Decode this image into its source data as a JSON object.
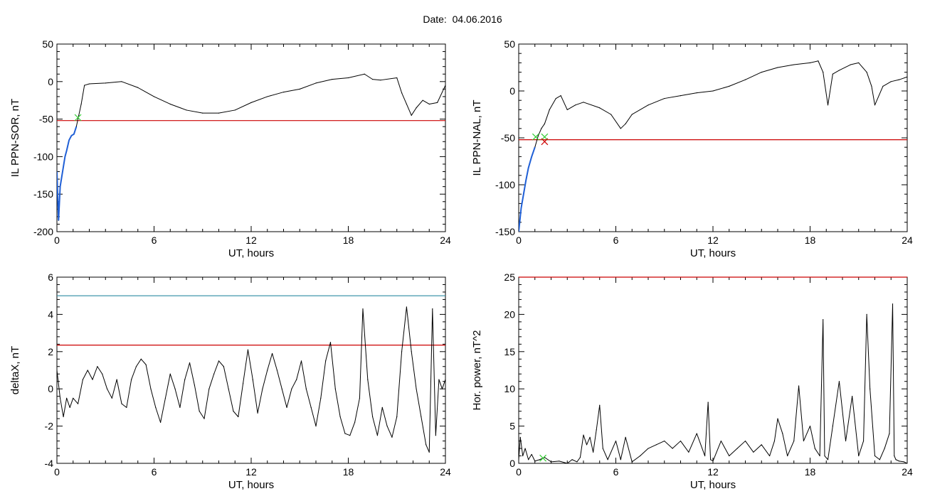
{
  "title": "Date:  04.06.2016",
  "colors": {
    "axis": "#000000",
    "data": "#000000",
    "threshold_red": "#cc0000",
    "threshold_blue": "#2b8ca3",
    "segment_blue": "#1f5fd6",
    "marker_green": "#33cc33",
    "marker_red": "#cc0000"
  },
  "chart_data": [
    {
      "type": "line",
      "title": "",
      "xlabel": "UT, hours",
      "ylabel": "IL PPN-SOR, nT",
      "xlim": [
        0,
        24
      ],
      "ylim": [
        -200,
        50
      ],
      "xticks": [
        0,
        6,
        12,
        18,
        24
      ],
      "yticks": [
        -200,
        -150,
        -100,
        -50,
        0,
        50
      ],
      "hlines": [
        {
          "y": -52,
          "color": "#cc0000"
        }
      ],
      "highlight_segment": {
        "x_range": [
          0,
          1.3
        ],
        "color": "#1f5fd6"
      },
      "markers": [
        {
          "x": 1.3,
          "y": -48,
          "symbol": "x",
          "color": "#33cc33"
        }
      ],
      "series": [
        {
          "x": [
            0,
            0.1,
            0.2,
            0.35,
            0.5,
            0.6,
            0.75,
            0.9,
            1.05,
            1.2,
            1.35,
            1.5,
            1.7,
            2,
            3,
            4,
            5,
            6,
            7,
            8,
            9,
            10,
            11,
            12,
            13,
            14,
            15,
            16,
            17,
            18,
            19,
            19.5,
            20,
            21,
            21.3,
            21.6,
            21.9,
            22.2,
            22.6,
            23,
            23.5,
            24
          ],
          "y": [
            -120,
            -185,
            -140,
            -120,
            -100,
            -92,
            -78,
            -72,
            -70,
            -60,
            -45,
            -30,
            -5,
            -3,
            -2,
            0,
            -8,
            -20,
            -30,
            -38,
            -42,
            -42,
            -38,
            -28,
            -20,
            -14,
            -10,
            -2,
            3,
            5,
            10,
            3,
            2,
            5,
            -15,
            -30,
            -45,
            -35,
            -25,
            -30,
            -28,
            -5
          ]
        }
      ]
    },
    {
      "type": "line",
      "title": "",
      "xlabel": "UT, hours",
      "ylabel": "IL PPN-NAL, nT",
      "xlim": [
        0,
        24
      ],
      "ylim": [
        -150,
        50
      ],
      "xticks": [
        0,
        6,
        12,
        18,
        24
      ],
      "yticks": [
        -150,
        -100,
        -50,
        0,
        50
      ],
      "hlines": [
        {
          "y": -52,
          "color": "#cc0000"
        }
      ],
      "highlight_segment": {
        "x_range": [
          0,
          1.1
        ],
        "color": "#1f5fd6"
      },
      "markers": [
        {
          "x": 1.05,
          "y": -49,
          "symbol": "x",
          "color": "#33cc33"
        },
        {
          "x": 1.6,
          "y": -49,
          "symbol": "x",
          "color": "#33cc33"
        },
        {
          "x": 1.6,
          "y": -54,
          "symbol": "x",
          "color": "#cc0000"
        }
      ],
      "series": [
        {
          "x": [
            0,
            0.15,
            0.3,
            0.45,
            0.6,
            0.8,
            1.0,
            1.2,
            1.4,
            1.6,
            1.9,
            2.3,
            2.6,
            3,
            3.5,
            4,
            5,
            5.7,
            6.3,
            6.6,
            7,
            8,
            9,
            10,
            11,
            12,
            13,
            14,
            15,
            16,
            17,
            18,
            18.5,
            18.8,
            19.1,
            19.4,
            19.8,
            20.5,
            21,
            21.5,
            21.8,
            22,
            22.5,
            23,
            23.5,
            24
          ],
          "y": [
            -150,
            -125,
            -110,
            -95,
            -82,
            -70,
            -60,
            -48,
            -40,
            -35,
            -20,
            -8,
            -5,
            -20,
            -15,
            -12,
            -18,
            -25,
            -40,
            -35,
            -25,
            -15,
            -8,
            -5,
            -2,
            0,
            5,
            12,
            20,
            25,
            28,
            30,
            32,
            20,
            -15,
            18,
            22,
            28,
            30,
            20,
            5,
            -15,
            5,
            10,
            12,
            15
          ]
        }
      ]
    },
    {
      "type": "line",
      "title": "",
      "xlabel": "UT, hours",
      "ylabel": "deltaX, nT",
      "xlim": [
        0,
        24
      ],
      "ylim": [
        -4,
        6
      ],
      "xticks": [
        0,
        6,
        12,
        18,
        24
      ],
      "yticks": [
        -4,
        -2,
        0,
        2,
        4,
        6
      ],
      "hlines": [
        {
          "y": 5,
          "color": "#2b8ca3"
        },
        {
          "y": 2.35,
          "color": "#cc0000"
        }
      ],
      "series": [
        {
          "x": [
            0,
            0.2,
            0.4,
            0.6,
            0.8,
            1,
            1.3,
            1.6,
            1.9,
            2.2,
            2.5,
            2.8,
            3.1,
            3.4,
            3.7,
            4,
            4.3,
            4.6,
            4.9,
            5.2,
            5.5,
            5.8,
            6.1,
            6.4,
            6.7,
            7,
            7.3,
            7.6,
            7.9,
            8.2,
            8.5,
            8.8,
            9.1,
            9.4,
            9.7,
            10,
            10.3,
            10.6,
            10.9,
            11.2,
            11.5,
            11.8,
            12.1,
            12.4,
            12.7,
            13,
            13.3,
            13.6,
            13.9,
            14.2,
            14.5,
            14.8,
            15.1,
            15.4,
            15.7,
            16,
            16.3,
            16.6,
            16.9,
            17.2,
            17.5,
            17.8,
            18.1,
            18.4,
            18.7,
            18.9,
            19.2,
            19.5,
            19.8,
            20.1,
            20.4,
            20.7,
            21,
            21.3,
            21.6,
            21.9,
            22.2,
            22.5,
            22.8,
            23,
            23.2,
            23.4,
            23.6,
            23.8,
            24
          ],
          "y": [
            1,
            -0.5,
            -1.5,
            -0.5,
            -1,
            -0.5,
            -0.8,
            0.5,
            1,
            0.5,
            1.2,
            0.8,
            0,
            -0.5,
            0.5,
            -0.8,
            -1,
            0.5,
            1.2,
            1.6,
            1.3,
            0,
            -1,
            -1.8,
            -0.5,
            0.8,
            0,
            -1,
            0.5,
            1.4,
            0.2,
            -1.2,
            -1.6,
            0,
            0.8,
            1.5,
            1.2,
            0,
            -1.2,
            -1.5,
            0.3,
            2.1,
            0.5,
            -1.3,
            0,
            1,
            1.9,
            1,
            0,
            -1,
            0,
            0.5,
            1.5,
            0,
            -1,
            -2,
            -0.5,
            1.5,
            2.5,
            0,
            -1.5,
            -2.4,
            -2.5,
            -1.8,
            -0.5,
            4.3,
            0.5,
            -1.5,
            -2.5,
            -1,
            -2,
            -2.6,
            -1.5,
            2,
            4.4,
            2,
            0,
            -1.5,
            -3,
            -3.4,
            4.3,
            -2.5,
            0.5,
            0,
            0.5
          ]
        }
      ]
    },
    {
      "type": "line",
      "title": "",
      "xlabel": "UT, hours",
      "ylabel": "Hor. power, nT^2",
      "xlim": [
        0,
        24
      ],
      "ylim": [
        0,
        25
      ],
      "xticks": [
        0,
        6,
        12,
        18,
        24
      ],
      "yticks": [
        0,
        5,
        10,
        15,
        20,
        25
      ],
      "hlines": [
        {
          "y": 25,
          "color": "#cc0000"
        }
      ],
      "markers": [
        {
          "x": 1.5,
          "y": 0.7,
          "symbol": "x",
          "color": "#33cc33"
        }
      ],
      "series": [
        {
          "x": [
            0,
            0.1,
            0.25,
            0.4,
            0.6,
            0.8,
            1,
            1.3,
            1.6,
            2,
            2.5,
            3,
            3.3,
            3.6,
            3.8,
            4,
            4.2,
            4.4,
            4.6,
            4.8,
            5,
            5.2,
            5.5,
            6,
            6.3,
            6.6,
            7,
            7.5,
            8,
            8.5,
            9,
            9.5,
            10,
            10.5,
            11,
            11.5,
            11.7,
            11.85,
            12,
            12.5,
            13,
            13.5,
            14,
            14.5,
            15,
            15.5,
            15.8,
            16,
            16.3,
            16.6,
            17,
            17.3,
            17.6,
            18,
            18.3,
            18.6,
            18.8,
            18.9,
            19.1,
            19.4,
            19.8,
            20.2,
            20.6,
            21,
            21.3,
            21.5,
            21.7,
            22,
            22.3,
            22.6,
            22.9,
            23.1,
            23.2,
            23.3,
            23.5,
            23.8,
            24
          ],
          "y": [
            0.5,
            3.5,
            1,
            2,
            0.5,
            1.2,
            0.3,
            0.5,
            0.8,
            0.2,
            0.3,
            0,
            0.5,
            0.2,
            0.8,
            3.8,
            2.5,
            3.5,
            1.5,
            4.5,
            7.8,
            2,
            0.5,
            3,
            0.5,
            3.5,
            0.2,
            1,
            2,
            2.5,
            3,
            2,
            3,
            1.5,
            4,
            1,
            8.2,
            0.5,
            0.3,
            3,
            1,
            2,
            3,
            1.5,
            2.5,
            1,
            3,
            6,
            4,
            1,
            3,
            10.4,
            3,
            5,
            2,
            1,
            19.3,
            1,
            0.5,
            5,
            11,
            3,
            9,
            1,
            3,
            20,
            10,
            1,
            0.5,
            2,
            4,
            21.4,
            1,
            0.5,
            0.3,
            0.2,
            0
          ]
        }
      ]
    }
  ]
}
